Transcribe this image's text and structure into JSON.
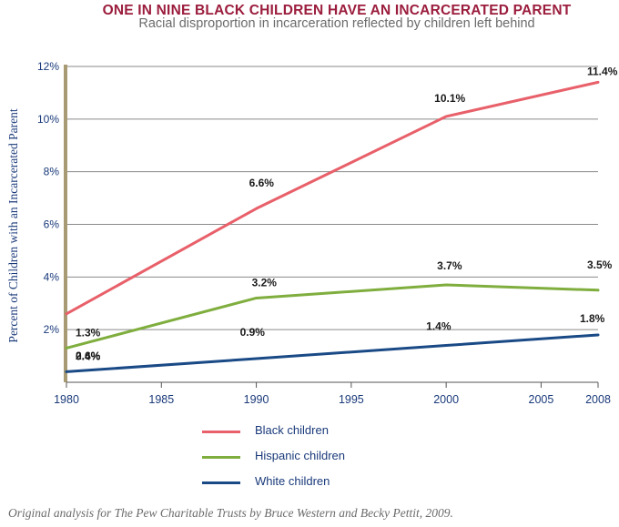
{
  "header": {
    "title": "ONE IN NINE BLACK CHILDREN HAVE AN INCARCERATED PARENT",
    "subtitle": "Racial disproportion in incarceration reflected by children left behind"
  },
  "source": "Original analysis for The Pew Charitable Trusts by Bruce Western and Becky Pettit, 2009.",
  "colors": {
    "black_children": "#e8606a",
    "hispanic_children": "#7fae3e",
    "white_children": "#1a4a86",
    "title": "#9b1d3d",
    "axis_text": "#1a3a7a",
    "grid": "#8a8a8a",
    "y_axis_bar": "#a89a72"
  },
  "chart_data": {
    "type": "line",
    "title": "ONE IN NINE BLACK CHILDREN HAVE AN INCARCERATED PARENT",
    "subtitle": "Racial disproportion in incarceration reflected by children left behind",
    "xlabel": "",
    "ylabel": "Percent of Children with an Incarcerated Parent",
    "x": [
      1980,
      1990,
      2000,
      2008
    ],
    "xlim": [
      1980,
      2008
    ],
    "ylim": [
      0,
      12
    ],
    "x_ticks": [
      "1980",
      "1985",
      "1990",
      "1995",
      "2000",
      "2005",
      "2008"
    ],
    "y_ticks": [
      "2%",
      "4%",
      "6%",
      "8%",
      "10%",
      "12%"
    ],
    "grid": true,
    "legend_position": "bottom",
    "series": [
      {
        "name": "Black children",
        "values": [
          2.6,
          6.6,
          10.1,
          11.4
        ],
        "labels": [
          "2.6%",
          "6.6%",
          "10.1%",
          "11.4%"
        ]
      },
      {
        "name": "Hispanic children",
        "values": [
          1.3,
          3.2,
          3.7,
          3.5
        ],
        "labels": [
          "1.3%",
          "3.2%",
          "3.7%",
          "3.5%"
        ]
      },
      {
        "name": "White children",
        "values": [
          0.4,
          0.9,
          1.4,
          1.8
        ],
        "labels": [
          "0.4%",
          "0.9%",
          "1.4%",
          "1.8%"
        ]
      }
    ]
  }
}
